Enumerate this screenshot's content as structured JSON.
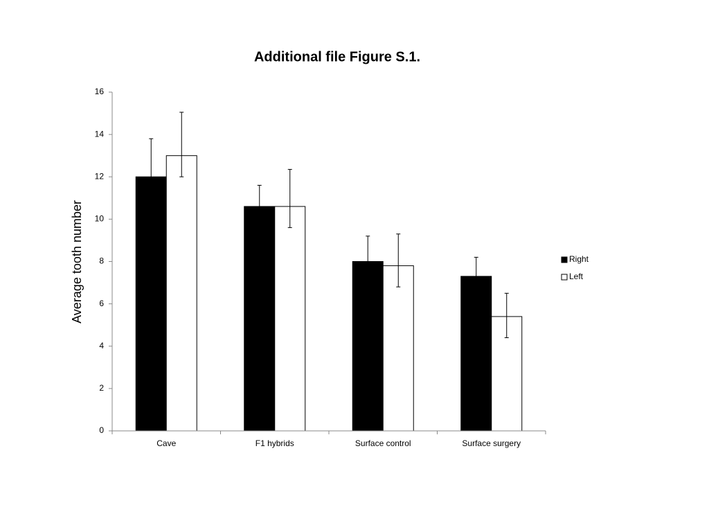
{
  "chart_data": {
    "type": "bar",
    "title": "Additional file Figure S.1.",
    "y_label": "Average  tooth number",
    "categories": [
      "Cave",
      "F1 hybrids",
      "Surface control",
      "Surface surgery"
    ],
    "series": [
      {
        "name": "Right",
        "color": "#000000",
        "values": [
          12,
          10.6,
          8,
          7.3
        ],
        "errors_plus": [
          1.8,
          1.0,
          1.2,
          0.9
        ],
        "errors_minus": [
          1.0,
          1.0,
          1.0,
          1.0
        ]
      },
      {
        "name": "Left",
        "color": "#ffffff",
        "values": [
          13,
          10.6,
          7.8,
          5.4
        ],
        "errors_plus": [
          2.05,
          1.75,
          1.5,
          1.1
        ],
        "errors_minus": [
          1.0,
          1.0,
          1.0,
          1.0
        ]
      }
    ],
    "ylim": [
      0,
      16
    ],
    "yticks": [
      0,
      2,
      4,
      6,
      8,
      10,
      12,
      14,
      16
    ],
    "grid": false,
    "legend": "right"
  }
}
